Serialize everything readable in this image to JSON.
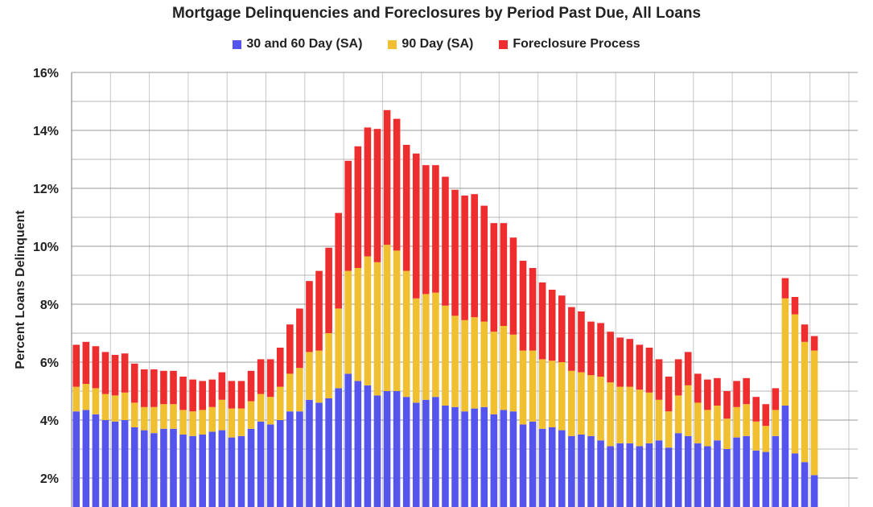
{
  "chart_data": {
    "type": "bar",
    "stacked": true,
    "title": "Mortgage Delinquencies and Foreclosures by Period Past Due, All Loans",
    "ylabel": "Percent Loans Delinquent",
    "ylim": [
      1,
      16
    ],
    "yticks": [
      "2%",
      "4%",
      "6%",
      "8%",
      "10%",
      "12%",
      "14%",
      "16%"
    ],
    "ytick_values": [
      2,
      4,
      6,
      8,
      10,
      12,
      14,
      16
    ],
    "grid": true,
    "legend_position": "top-center",
    "series": [
      {
        "name": "30 and 60 Day (SA)",
        "color": "#5555ee",
        "values": [
          4.3,
          4.35,
          4.2,
          4.0,
          3.95,
          4.0,
          3.75,
          3.65,
          3.55,
          3.7,
          3.7,
          3.5,
          3.45,
          3.5,
          3.6,
          3.65,
          3.4,
          3.45,
          3.7,
          3.95,
          3.85,
          4.0,
          4.3,
          4.3,
          4.7,
          4.6,
          4.75,
          5.1,
          5.6,
          5.35,
          5.2,
          4.85,
          5.0,
          5.0,
          4.8,
          4.6,
          4.7,
          4.8,
          4.5,
          4.45,
          4.3,
          4.4,
          4.45,
          4.2,
          4.35,
          4.3,
          3.85,
          3.95,
          3.7,
          3.75,
          3.65,
          3.45,
          3.5,
          3.45,
          3.3,
          3.1,
          3.2,
          3.2,
          3.1,
          3.2,
          3.3,
          3.05,
          3.55,
          3.45,
          3.2,
          3.1,
          3.3,
          3.0,
          3.4,
          3.45,
          2.95,
          2.9,
          3.45,
          4.5,
          2.85,
          2.55,
          2.1
        ]
      },
      {
        "name": "90 Day (SA)",
        "color": "#f0c030",
        "values": [
          0.85,
          0.9,
          0.9,
          0.9,
          0.9,
          0.95,
          0.85,
          0.8,
          0.9,
          0.85,
          0.85,
          0.85,
          0.85,
          0.85,
          0.85,
          1.05,
          1.0,
          0.95,
          0.95,
          0.95,
          0.95,
          1.15,
          1.3,
          1.5,
          1.65,
          1.8,
          2.25,
          2.75,
          3.55,
          3.9,
          4.45,
          4.6,
          5.05,
          4.85,
          4.35,
          3.6,
          3.65,
          3.6,
          3.45,
          3.15,
          3.15,
          3.15,
          2.95,
          2.85,
          2.9,
          2.65,
          2.55,
          2.45,
          2.4,
          2.3,
          2.35,
          2.25,
          2.15,
          2.1,
          2.2,
          2.2,
          1.95,
          1.95,
          1.95,
          1.75,
          1.4,
          1.25,
          1.3,
          1.75,
          1.4,
          1.25,
          1.2,
          1.05,
          1.05,
          1.1,
          1.0,
          0.9,
          0.9,
          3.7,
          4.8,
          4.15,
          4.3
        ]
      },
      {
        "name": "Foreclosure Process",
        "color": "#ee2e2e",
        "values": [
          1.45,
          1.45,
          1.45,
          1.45,
          1.4,
          1.35,
          1.35,
          1.3,
          1.3,
          1.15,
          1.15,
          1.15,
          1.1,
          1.0,
          0.95,
          0.95,
          0.95,
          0.95,
          1.05,
          1.2,
          1.3,
          1.35,
          1.7,
          2.05,
          2.45,
          2.75,
          2.95,
          3.3,
          3.8,
          4.2,
          4.45,
          4.6,
          4.65,
          4.55,
          4.35,
          5.0,
          4.45,
          4.4,
          4.45,
          4.35,
          4.3,
          4.25,
          4.0,
          3.75,
          3.55,
          3.35,
          3.1,
          2.85,
          2.65,
          2.45,
          2.3,
          2.2,
          2.1,
          1.85,
          1.85,
          1.75,
          1.7,
          1.65,
          1.55,
          1.55,
          1.4,
          1.2,
          1.25,
          1.15,
          1.0,
          1.05,
          0.95,
          0.95,
          0.9,
          0.9,
          0.85,
          0.75,
          0.75,
          0.7,
          0.6,
          0.6,
          0.5
        ]
      }
    ]
  }
}
